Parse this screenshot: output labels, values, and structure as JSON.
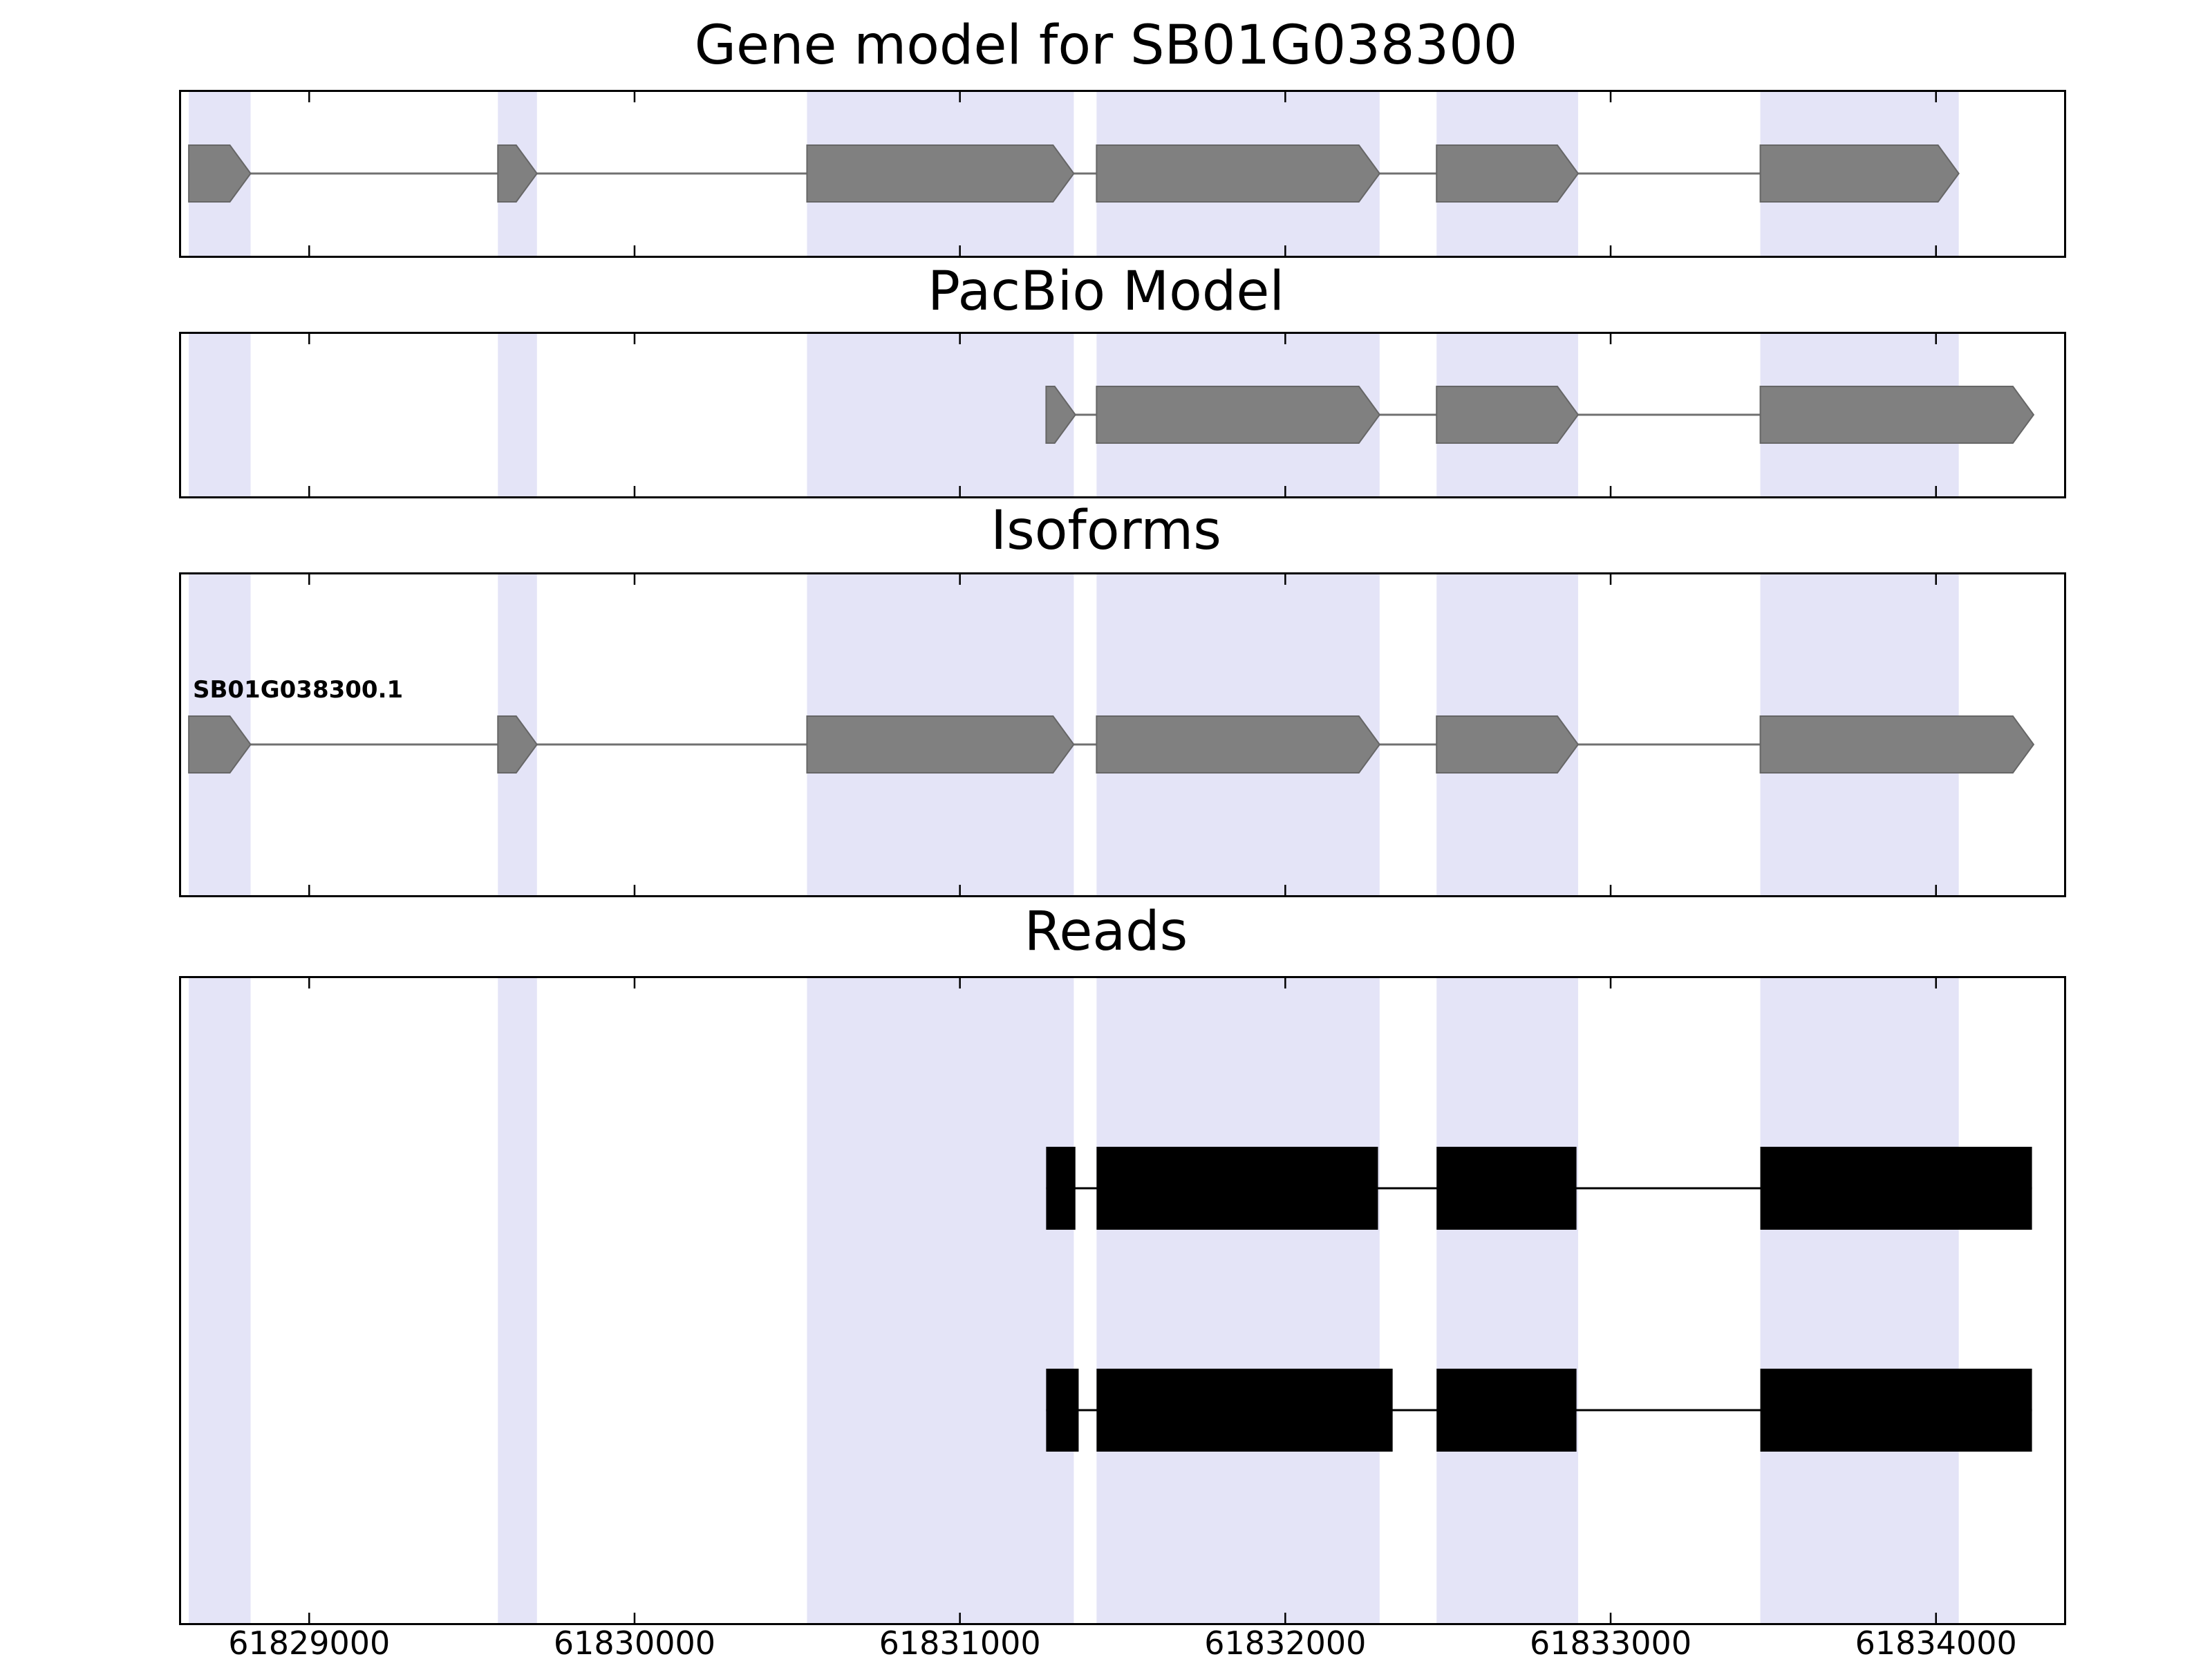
{
  "figure": {
    "panels": [
      {
        "id": "gene_model",
        "title": "Gene model for SB01G038300"
      },
      {
        "id": "pacbio",
        "title": "PacBio Model"
      },
      {
        "id": "isoforms",
        "title": "Isoforms"
      },
      {
        "id": "reads",
        "title": "Reads"
      }
    ]
  },
  "chart_data": {
    "type": "genome-browser-tracks",
    "title": "Gene model for SB01G038300",
    "x_axis": {
      "xlim": [
        61828600,
        61834400
      ],
      "ticks": [
        61829000,
        61830000,
        61831000,
        61832000,
        61833000,
        61834000
      ],
      "tick_labels": [
        "61829000",
        "61830000",
        "61831000",
        "61832000",
        "61833000",
        "61834000"
      ]
    },
    "highlight_bands": [
      [
        61828630,
        61828820
      ],
      [
        61829580,
        61829700
      ],
      [
        61830530,
        61831350
      ],
      [
        61831420,
        61832290
      ],
      [
        61832465,
        61832900
      ],
      [
        61833460,
        61834070
      ]
    ],
    "tracks": {
      "gene_model": {
        "title": "Gene model for SB01G038300",
        "strand": "+",
        "exons": [
          [
            61828630,
            61828820
          ],
          [
            61829580,
            61829700
          ],
          [
            61830530,
            61831350
          ],
          [
            61831420,
            61832290
          ],
          [
            61832465,
            61832900
          ],
          [
            61833460,
            61834070
          ]
        ]
      },
      "pacbio_model": {
        "title": "PacBio Model",
        "strand": "+",
        "exons": [
          [
            61831265,
            61831355
          ],
          [
            61831420,
            61832290
          ],
          [
            61832465,
            61832900
          ],
          [
            61833460,
            61834300
          ]
        ]
      },
      "isoforms": {
        "title": "Isoforms",
        "items": [
          {
            "label": "SB01G038300.1",
            "strand": "+",
            "exons": [
              [
                61828630,
                61828820
              ],
              [
                61829580,
                61829700
              ],
              [
                61830530,
                61831350
              ],
              [
                61831420,
                61832290
              ],
              [
                61832465,
                61832900
              ],
              [
                61833460,
                61834300
              ]
            ]
          }
        ]
      },
      "reads": {
        "title": "Reads",
        "items": [
          {
            "blocks": [
              [
                61831265,
                61831355
              ],
              [
                61831420,
                61832285
              ],
              [
                61832465,
                61832895
              ],
              [
                61833460,
                61834295
              ]
            ]
          },
          {
            "blocks": [
              [
                61831265,
                61831365
              ],
              [
                61831420,
                61832330
              ],
              [
                61832465,
                61832895
              ],
              [
                61833460,
                61834295
              ]
            ]
          }
        ]
      }
    },
    "colors": {
      "exon_fill": "#808080",
      "exon_edge": "#666666",
      "intron_line": "#707070",
      "read_fill": "#000000",
      "band_fill": "#E4E4F7",
      "axis_color": "#000000",
      "background": "#ffffff"
    },
    "layout_hints": {
      "grid": false,
      "legend": "none",
      "x_labels_bottom_only": true
    }
  }
}
